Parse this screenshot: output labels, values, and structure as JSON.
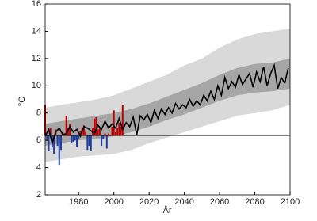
{
  "chart_data": {
    "type": "combo",
    "xlabel": "År",
    "ylabel": "°C",
    "xlim": [
      1961,
      2100
    ],
    "ylim": [
      2,
      16
    ],
    "xticks": [
      1980,
      2000,
      2020,
      2040,
      2060,
      2080,
      2100
    ],
    "yticks": [
      2,
      4,
      6,
      8,
      10,
      12,
      14,
      16
    ],
    "reference_line": 6.35,
    "reference_color": "#000000",
    "series": [
      {
        "type": "band",
        "color": "#d9d9d9",
        "x": [
          1961,
          1970,
          1980,
          1990,
          2000,
          2010,
          2020,
          2030,
          2040,
          2050,
          2060,
          2070,
          2080,
          2090,
          2100
        ],
        "lower": [
          4.4,
          4.6,
          4.8,
          4.9,
          5.0,
          5.3,
          5.8,
          6.2,
          6.6,
          7.0,
          7.4,
          7.8,
          8.0,
          8.2,
          8.6
        ],
        "upper": [
          8.4,
          8.6,
          8.8,
          9.0,
          9.3,
          9.8,
          10.3,
          10.8,
          11.5,
          12.0,
          12.8,
          13.4,
          13.8,
          14.0,
          14.2
        ]
      },
      {
        "type": "band",
        "color": "#a6a6a6",
        "x": [
          1961,
          1970,
          1980,
          1990,
          2000,
          2010,
          2020,
          2030,
          2040,
          2050,
          2060,
          2070,
          2080,
          2090,
          2100
        ],
        "lower": [
          5.6,
          5.8,
          6.0,
          6.1,
          6.3,
          6.6,
          7.0,
          7.5,
          7.9,
          8.4,
          8.9,
          9.3,
          9.5,
          9.6,
          9.8
        ],
        "upper": [
          7.2,
          7.4,
          7.6,
          7.8,
          8.0,
          8.3,
          8.7,
          9.2,
          9.7,
          10.2,
          10.8,
          11.3,
          11.6,
          11.7,
          12.0
        ]
      },
      {
        "type": "bar",
        "above_color": "#c00000",
        "below_color": "#1f3fa0",
        "x": [
          1961,
          1962,
          1963,
          1964,
          1965,
          1966,
          1967,
          1968,
          1969,
          1970,
          1971,
          1972,
          1973,
          1974,
          1975,
          1976,
          1977,
          1978,
          1979,
          1980,
          1981,
          1982,
          1983,
          1984,
          1985,
          1986,
          1987,
          1988,
          1989,
          1990,
          1991,
          1992,
          1993,
          1994,
          1995,
          1996,
          1997,
          1998,
          1999,
          2000,
          2001,
          2002,
          2003,
          2004,
          2005
        ],
        "values": [
          8.6,
          6.0,
          5.2,
          6.9,
          5.5,
          5.0,
          6.8,
          5.6,
          4.2,
          5.3,
          6.6,
          6.5,
          7.8,
          6.9,
          7.2,
          5.8,
          5.9,
          6.0,
          5.5,
          6.1,
          6.7,
          6.9,
          7.1,
          6.6,
          5.3,
          5.6,
          5.2,
          6.9,
          7.6,
          7.7,
          6.8,
          6.9,
          5.6,
          6.1,
          6.5,
          5.4,
          6.5,
          6.4,
          7.0,
          8.2,
          6.6,
          6.9,
          7.3,
          7.0,
          8.6
        ]
      },
      {
        "type": "line",
        "color": "#000000",
        "x": [
          1961,
          1963,
          1965,
          1967,
          1969,
          1971,
          1973,
          1975,
          1977,
          1979,
          1981,
          1983,
          1985,
          1987,
          1989,
          1991,
          1993,
          1995,
          1997,
          1999,
          2001,
          2003,
          2005,
          2007,
          2009,
          2011,
          2013,
          2015,
          2017,
          2019,
          2021,
          2023,
          2025,
          2027,
          2029,
          2031,
          2033,
          2035,
          2037,
          2039,
          2041,
          2043,
          2045,
          2047,
          2049,
          2051,
          2053,
          2055,
          2057,
          2059,
          2061,
          2063,
          2065,
          2067,
          2069,
          2071,
          2073,
          2075,
          2077,
          2079,
          2081,
          2083,
          2085,
          2087,
          2089,
          2091,
          2093,
          2095,
          2097,
          2099
        ],
        "values": [
          6.3,
          6.8,
          5.8,
          6.6,
          6.9,
          6.4,
          6.5,
          7.0,
          6.6,
          6.8,
          6.3,
          7.0,
          6.9,
          6.7,
          6.5,
          7.1,
          6.8,
          7.4,
          6.9,
          7.2,
          6.9,
          7.6,
          6.8,
          7.3,
          7.0,
          7.7,
          6.4,
          7.8,
          7.5,
          7.9,
          7.3,
          8.2,
          7.6,
          8.3,
          7.9,
          8.4,
          8.0,
          8.7,
          8.3,
          8.6,
          8.4,
          9.0,
          8.5,
          8.9,
          8.6,
          9.3,
          8.9,
          9.6,
          9.0,
          10.0,
          9.3,
          10.6,
          9.8,
          10.3,
          9.9,
          10.8,
          10.1,
          10.5,
          10.9,
          9.9,
          11.0,
          10.3,
          11.4,
          10.0,
          10.9,
          11.5,
          9.8,
          10.6,
          10.2,
          11.3
        ]
      }
    ]
  }
}
